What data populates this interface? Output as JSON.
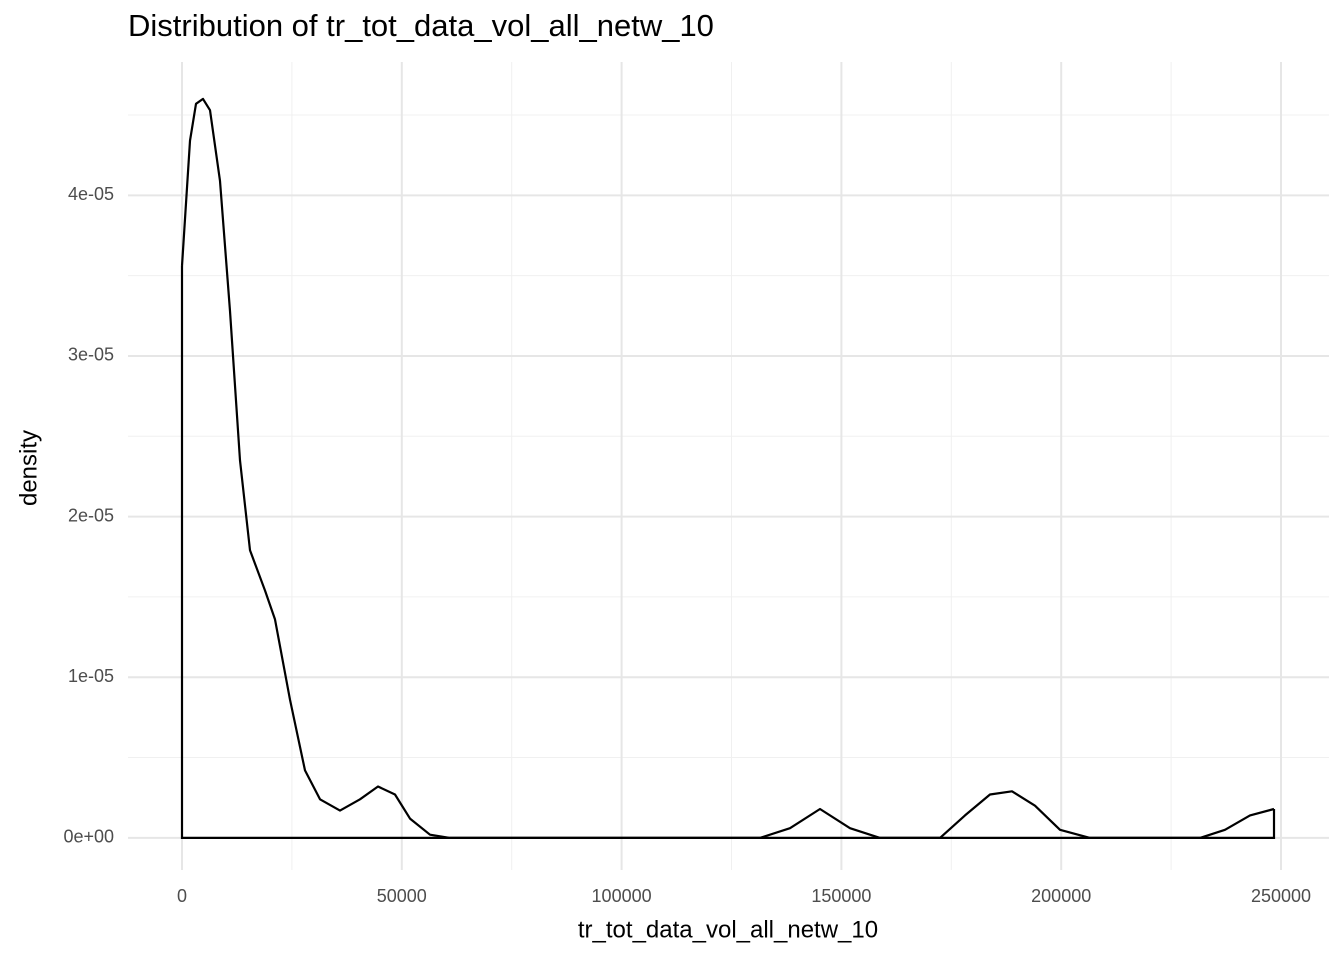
{
  "chart_data": {
    "type": "density",
    "title": "Distribution of tr_tot_data_vol_all_netw_10",
    "x_label": "tr_tot_data_vol_all_netw_10",
    "y_label": "density",
    "x": [
      0,
      1820,
      3185,
      4777,
      6370,
      8644,
      10919,
      13194,
      15469,
      18881,
      21156,
      24568,
      27980,
      31392,
      35942,
      40491,
      44586,
      48453,
      51865,
      56415,
      60964,
      131483,
      138308,
      145132,
      151956,
      158781,
      172430,
      178117,
      183803,
      188808,
      194040,
      199727,
      206551,
      231573,
      237261,
      242948,
      248408
    ],
    "values": [
      3.56e-05,
      4.34e-05,
      4.57e-05,
      4.6e-05,
      4.53e-05,
      4.09e-05,
      3.28e-05,
      2.35e-05,
      1.79e-05,
      1.54e-05,
      1.36e-05,
      8.6e-06,
      4.2e-06,
      2.4e-06,
      1.7e-06,
      2.4e-06,
      3.2e-06,
      2.7e-06,
      1.2e-06,
      2e-07,
      0,
      0,
      6e-07,
      1.8e-06,
      6e-07,
      0,
      0,
      1.4e-06,
      2.7e-06,
      2.9e-06,
      2e-06,
      5e-07,
      0,
      0,
      5e-07,
      1.4e-06,
      1.8e-06
    ],
    "color": "#000000",
    "xlim": [
      -12284,
      260919
    ],
    "ylim": [
      -2e-06,
      4.83e-05
    ],
    "xticks": [
      0,
      50000,
      100000,
      150000,
      200000,
      250000
    ],
    "yticks": [
      {
        "value": 0,
        "label": "0e+00"
      },
      {
        "value": 1e-05,
        "label": "1e-05"
      },
      {
        "value": 2e-05,
        "label": "2e-05"
      },
      {
        "value": 3e-05,
        "label": "3e-05"
      },
      {
        "value": 4e-05,
        "label": "4e-05"
      }
    ],
    "grid": true
  }
}
